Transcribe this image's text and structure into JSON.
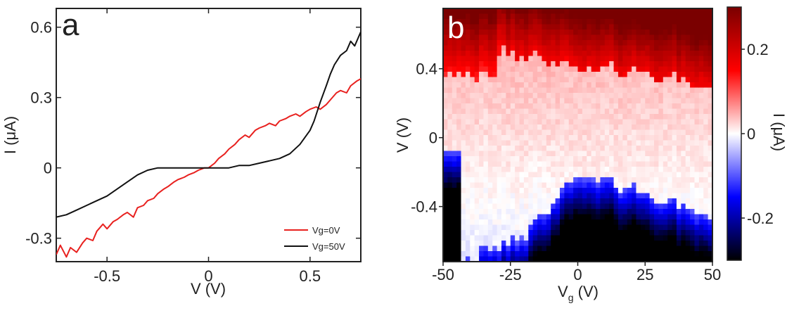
{
  "chart_data": [
    {
      "panel": "a",
      "type": "line",
      "xlabel": "V (V)",
      "ylabel": "I (μA)",
      "xlim": [
        -0.75,
        0.75
      ],
      "ylim": [
        -0.4,
        0.68
      ],
      "xticks": [
        -0.5,
        0,
        0.5
      ],
      "xtick_labels": [
        "-0.5",
        "0",
        "0.5"
      ],
      "yticks": [
        -0.3,
        0,
        0.3,
        0.6
      ],
      "ytick_labels": [
        "-0.3",
        "0",
        "0.3",
        "0.6"
      ],
      "legend_position": "bottom-right",
      "series": [
        {
          "name": "Vg=0V",
          "color": "#e8211f",
          "x": [
            -0.75,
            -0.73,
            -0.7,
            -0.68,
            -0.65,
            -0.62,
            -0.6,
            -0.57,
            -0.55,
            -0.52,
            -0.5,
            -0.47,
            -0.45,
            -0.42,
            -0.4,
            -0.37,
            -0.35,
            -0.32,
            -0.3,
            -0.27,
            -0.25,
            -0.22,
            -0.2,
            -0.17,
            -0.15,
            -0.12,
            -0.1,
            -0.07,
            -0.05,
            -0.02,
            0,
            0.03,
            0.05,
            0.08,
            0.1,
            0.13,
            0.15,
            0.18,
            0.2,
            0.23,
            0.25,
            0.28,
            0.3,
            0.33,
            0.35,
            0.38,
            0.4,
            0.43,
            0.45,
            0.48,
            0.5,
            0.53,
            0.55,
            0.58,
            0.6,
            0.63,
            0.65,
            0.68,
            0.7,
            0.73,
            0.75
          ],
          "values": [
            -0.37,
            -0.33,
            -0.38,
            -0.34,
            -0.36,
            -0.32,
            -0.3,
            -0.31,
            -0.27,
            -0.24,
            -0.26,
            -0.23,
            -0.22,
            -0.2,
            -0.19,
            -0.21,
            -0.17,
            -0.16,
            -0.14,
            -0.13,
            -0.11,
            -0.09,
            -0.08,
            -0.06,
            -0.05,
            -0.04,
            -0.03,
            -0.02,
            -0.01,
            0.0,
            0.0,
            0.02,
            0.04,
            0.06,
            0.08,
            0.1,
            0.12,
            0.14,
            0.13,
            0.16,
            0.17,
            0.18,
            0.19,
            0.18,
            0.2,
            0.21,
            0.22,
            0.23,
            0.22,
            0.24,
            0.25,
            0.26,
            0.25,
            0.27,
            0.29,
            0.32,
            0.33,
            0.32,
            0.35,
            0.37,
            0.38
          ]
        },
        {
          "name": "Vg=50V",
          "color": "#111111",
          "x": [
            -0.75,
            -0.7,
            -0.65,
            -0.6,
            -0.55,
            -0.5,
            -0.45,
            -0.4,
            -0.35,
            -0.3,
            -0.25,
            -0.2,
            -0.15,
            -0.1,
            -0.05,
            0,
            0.05,
            0.1,
            0.15,
            0.2,
            0.25,
            0.3,
            0.35,
            0.4,
            0.45,
            0.5,
            0.52,
            0.55,
            0.58,
            0.6,
            0.62,
            0.65,
            0.68,
            0.7,
            0.72,
            0.75
          ],
          "values": [
            -0.21,
            -0.2,
            -0.18,
            -0.16,
            -0.14,
            -0.12,
            -0.09,
            -0.06,
            -0.03,
            -0.01,
            0.0,
            0.0,
            0.0,
            0.0,
            0.0,
            0.0,
            0.0,
            0.0,
            0.01,
            0.01,
            0.02,
            0.03,
            0.04,
            0.06,
            0.1,
            0.16,
            0.2,
            0.28,
            0.35,
            0.4,
            0.44,
            0.48,
            0.5,
            0.54,
            0.52,
            0.58
          ]
        }
      ]
    },
    {
      "panel": "b",
      "type": "heatmap",
      "xlabel_main": "V",
      "xlabel_sub": "g",
      "xlabel_unit": " (V)",
      "ylabel": "V (V)",
      "colorbar_label": "I (μA)",
      "xlim": [
        -50,
        50
      ],
      "ylim": [
        -0.72,
        0.75
      ],
      "xticks": [
        -50,
        -25,
        0,
        25,
        50
      ],
      "xtick_labels": [
        "-50",
        "-25",
        "0",
        "25",
        "50"
      ],
      "yticks": [
        -0.4,
        0,
        0.4
      ],
      "ytick_labels": [
        "-0.4",
        "0",
        "0.4"
      ],
      "colorbar_range": [
        -0.3,
        0.3
      ],
      "colorbar_ticks": [
        -0.2,
        0,
        0.2
      ],
      "colorbar_tick_labels": [
        "-0.2",
        "0",
        "0.2"
      ],
      "colormap": [
        "#000000",
        "#0000ff",
        "#ffffff",
        "#ff0000",
        "#7a0000"
      ]
    }
  ],
  "panel_a_letter": "a",
  "panel_b_letter": "b"
}
